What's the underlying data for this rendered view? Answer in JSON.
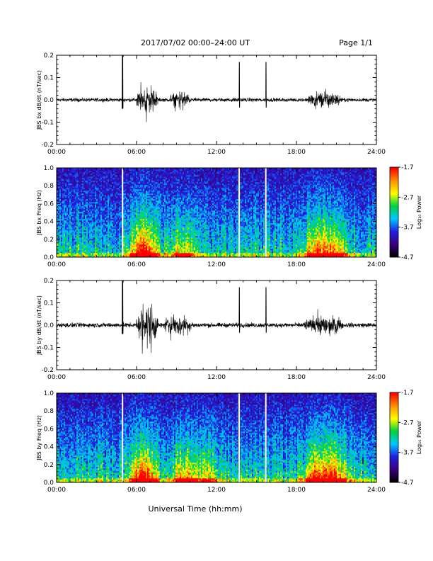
{
  "header": {
    "title": "2017/07/02  00:00–24:00 UT",
    "page": "Page 1/1"
  },
  "xaxis": {
    "label": "Universal Time (hh:mm)",
    "range": [
      0,
      24
    ],
    "ticks": [
      0,
      6,
      12,
      18,
      24
    ],
    "tick_labels": [
      "00:00",
      "06:00",
      "12:00",
      "18:00",
      "24:00"
    ]
  },
  "colorbar": {
    "label": "Log₁₀ Power",
    "range": [
      -4.7,
      -1.7
    ],
    "ticks": [
      -1.7,
      -2.7,
      -3.7,
      -4.7
    ],
    "tick_labels": [
      "-1.7",
      "-2.7",
      "-3.7",
      "-4.7"
    ],
    "colors": [
      "#000000",
      "#3a0080",
      "#2020e0",
      "#00c8ff",
      "#00d040",
      "#ffff00",
      "#ff9000",
      "#ff0000"
    ]
  },
  "chart_data": [
    {
      "type": "line",
      "ylabel": "JBS bx dB/dt (nT/sec)",
      "ylim": [
        -0.2,
        0.2
      ],
      "yticks": [
        -0.2,
        -0.1,
        0.0,
        0.1,
        0.2
      ],
      "ytick_labels": [
        "-0.2",
        "-0.1",
        "0.0",
        "0.1",
        "0.2"
      ],
      "series_color": "#000000",
      "baseline_amplitude": 0.012,
      "bursts": [
        {
          "start": 4.9,
          "end": 5.0,
          "amp": 0.2
        },
        {
          "start": 6.0,
          "end": 7.6,
          "amp": 0.14
        },
        {
          "start": 8.5,
          "end": 10.0,
          "amp": 0.08
        },
        {
          "start": 13.7,
          "end": 13.75,
          "amp": 0.17
        },
        {
          "start": 15.7,
          "end": 15.75,
          "amp": 0.17
        },
        {
          "start": 18.8,
          "end": 21.3,
          "amp": 0.08
        }
      ]
    },
    {
      "type": "heatmap",
      "ylabel": "JBS bx Freq (Hz)",
      "ylim": [
        0.0,
        1.0
      ],
      "yticks": [
        0.0,
        0.2,
        0.4,
        0.6,
        0.8,
        1.0
      ],
      "ytick_labels": [
        "0.0",
        "0.2",
        "0.4",
        "0.6",
        "0.8",
        "1.0"
      ],
      "gaps": [
        4.95,
        13.7,
        15.7
      ],
      "activity": [
        {
          "time": 6.5,
          "intensity": 1.0
        },
        {
          "time": 9.5,
          "intensity": 0.5
        },
        {
          "time": 19.5,
          "intensity": 0.75
        },
        {
          "time": 21.0,
          "intensity": 0.6
        }
      ]
    },
    {
      "type": "line",
      "ylabel": "JBS by dB/dt (nT/sec)",
      "ylim": [
        -0.2,
        0.2
      ],
      "yticks": [
        -0.2,
        -0.1,
        0.0,
        0.1,
        0.2
      ],
      "ytick_labels": [
        "-0.2",
        "-0.1",
        "0.0",
        "0.1",
        "0.2"
      ],
      "series_color": "#000000",
      "baseline_amplitude": 0.015,
      "bursts": [
        {
          "start": 4.9,
          "end": 5.0,
          "amp": 0.2
        },
        {
          "start": 6.0,
          "end": 7.6,
          "amp": 0.2
        },
        {
          "start": 8.0,
          "end": 10.2,
          "amp": 0.1
        },
        {
          "start": 13.7,
          "end": 13.75,
          "amp": 0.17
        },
        {
          "start": 15.7,
          "end": 15.75,
          "amp": 0.17
        },
        {
          "start": 18.5,
          "end": 21.5,
          "amp": 0.09
        }
      ]
    },
    {
      "type": "heatmap",
      "ylabel": "JBS by Freq (Hz)",
      "ylim": [
        0.0,
        1.0
      ],
      "yticks": [
        0.0,
        0.2,
        0.4,
        0.6,
        0.8,
        1.0
      ],
      "ytick_labels": [
        "0.0",
        "0.2",
        "0.4",
        "0.6",
        "0.8",
        "1.0"
      ],
      "gaps": [
        4.95,
        13.7,
        15.7
      ],
      "activity": [
        {
          "time": 6.5,
          "intensity": 1.0
        },
        {
          "time": 9.5,
          "intensity": 0.6
        },
        {
          "time": 11.2,
          "intensity": 0.4
        },
        {
          "time": 19.5,
          "intensity": 0.8
        },
        {
          "time": 21.0,
          "intensity": 0.7
        }
      ]
    }
  ]
}
